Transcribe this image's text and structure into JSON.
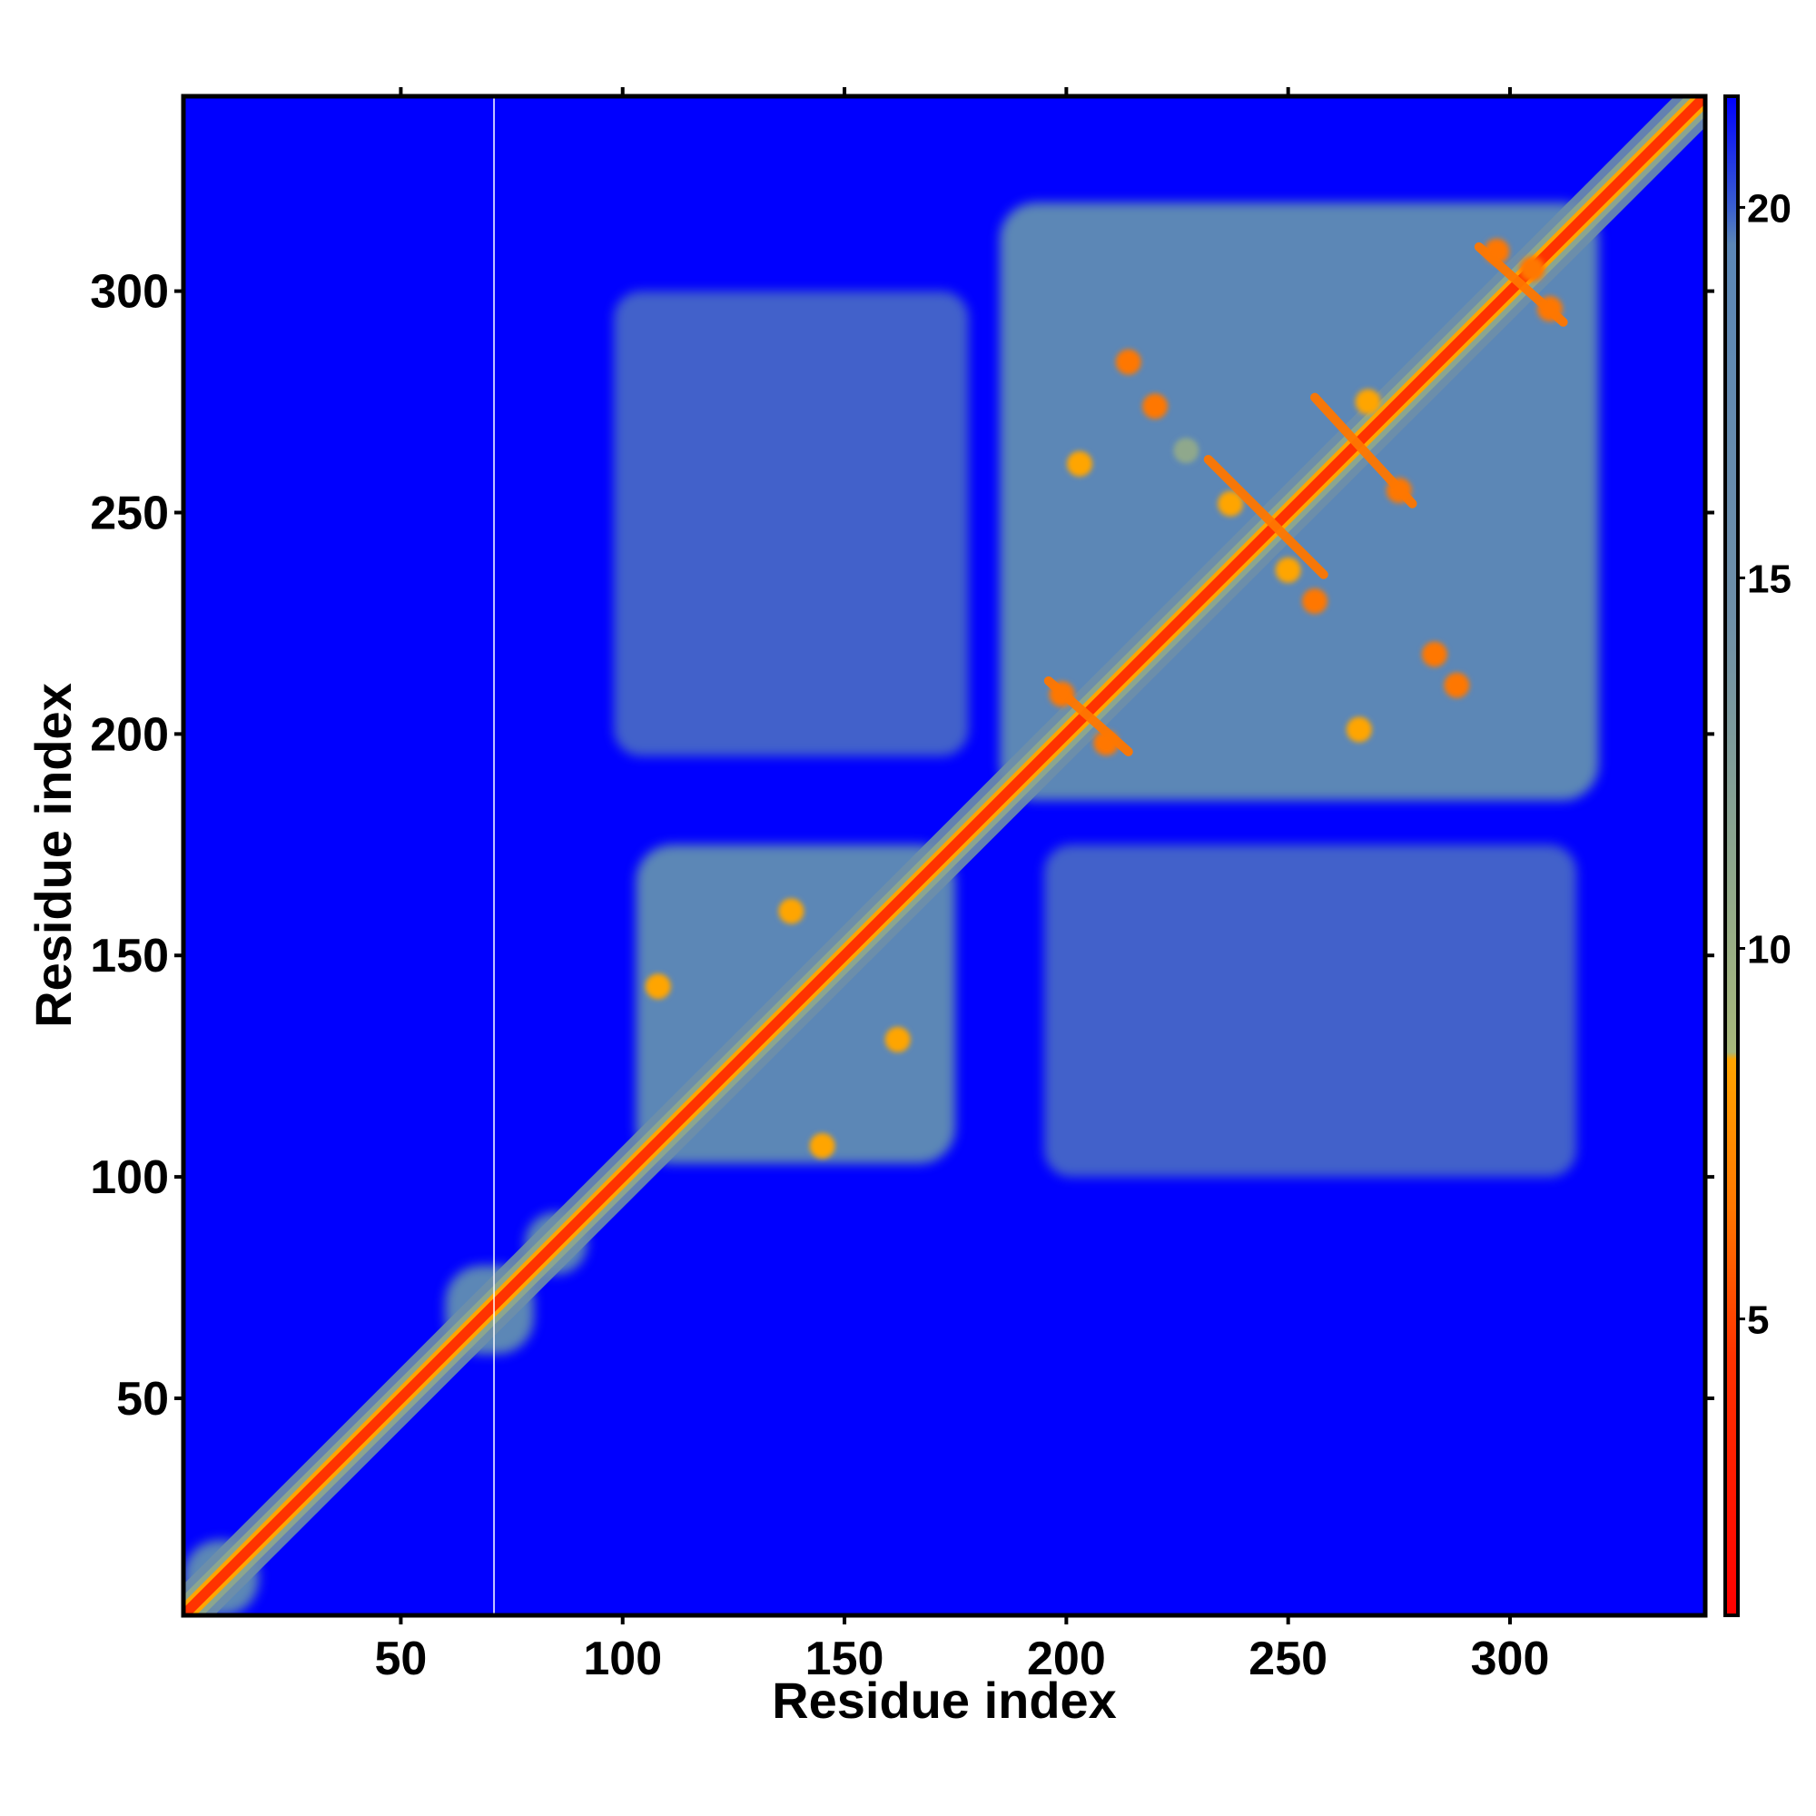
{
  "chart_data": {
    "type": "heatmap",
    "title": "",
    "xlabel": "Residue index",
    "ylabel": "Residue index",
    "xlim": [
      1,
      344
    ],
    "ylim": [
      1,
      344
    ],
    "x_ticks": [
      50,
      100,
      150,
      200,
      250,
      300
    ],
    "y_ticks": [
      50,
      100,
      150,
      200,
      250,
      300
    ],
    "colorbar": {
      "ticks": [
        5,
        10,
        15,
        20
      ],
      "range": [
        1,
        21.5
      ],
      "stops": [
        {
          "value": 1.0,
          "color": "#ff0000"
        },
        {
          "value": 4.5,
          "color": "#ff3300"
        },
        {
          "value": 6.5,
          "color": "#ff7700"
        },
        {
          "value": 8.5,
          "color": "#ffa500"
        },
        {
          "value": 8.6,
          "color": "#a8b87a"
        },
        {
          "value": 11.0,
          "color": "#8fa88c"
        },
        {
          "value": 14.5,
          "color": "#6e8fa8"
        },
        {
          "value": 19.5,
          "color": "#5b87b6"
        },
        {
          "value": 20.0,
          "color": "#3a5fd0"
        },
        {
          "value": 21.5,
          "color": "#0000ff"
        }
      ]
    },
    "background_color": "#0000ff",
    "missing_residue_line": 71,
    "diagonal_contacts": [
      {
        "from": 1,
        "to": 344,
        "value": 2
      }
    ],
    "domains": [
      {
        "name": "",
        "range": [
          1,
          18
        ],
        "mean_value": 16
      },
      {
        "name": "",
        "range": [
          60,
          80
        ],
        "mean_value": 15
      },
      {
        "name": "",
        "range": [
          78,
          92
        ],
        "mean_value": 15
      },
      {
        "name": "",
        "range": [
          103,
          175
        ],
        "mean_value": 17
      },
      {
        "name": "",
        "range": [
          185,
          320
        ],
        "mean_value": 17
      }
    ],
    "inter_domain_contacts": [
      {
        "rows": [
          195,
          300
        ],
        "cols": [
          98,
          178
        ],
        "value": 18.5
      },
      {
        "rows": [
          100,
          175
        ],
        "cols": [
          195,
          315
        ],
        "value": 18.5
      }
    ],
    "local_contacts": [
      {
        "x": 108,
        "y": 143,
        "value": 7
      },
      {
        "x": 145,
        "y": 107,
        "value": 7
      },
      {
        "x": 138,
        "y": 160,
        "value": 8
      },
      {
        "x": 162,
        "y": 131,
        "value": 8
      },
      {
        "x": 214,
        "y": 284,
        "value": 6
      },
      {
        "x": 220,
        "y": 274,
        "value": 6
      },
      {
        "x": 203,
        "y": 261,
        "value": 7
      },
      {
        "x": 227,
        "y": 264,
        "value": 9
      },
      {
        "x": 237,
        "y": 252,
        "value": 7
      },
      {
        "x": 250,
        "y": 237,
        "value": 7
      },
      {
        "x": 256,
        "y": 230,
        "value": 6
      },
      {
        "x": 275,
        "y": 255,
        "value": 6
      },
      {
        "x": 268,
        "y": 275,
        "value": 8
      },
      {
        "x": 283,
        "y": 218,
        "value": 6
      },
      {
        "x": 288,
        "y": 211,
        "value": 6
      },
      {
        "x": 266,
        "y": 201,
        "value": 7
      },
      {
        "x": 305,
        "y": 305,
        "value": 6
      },
      {
        "x": 297,
        "y": 309,
        "value": 6
      },
      {
        "x": 309,
        "y": 296,
        "value": 6
      },
      {
        "x": 199,
        "y": 209,
        "value": 6
      },
      {
        "x": 209,
        "y": 198,
        "value": 6
      }
    ],
    "antidiagonal_contacts": [
      {
        "x_range": [
          256,
          278
        ],
        "y_range": [
          276,
          252
        ],
        "value": 5
      },
      {
        "x_range": [
          232,
          258
        ],
        "y_range": [
          262,
          236
        ],
        "value": 5
      },
      {
        "x_range": [
          196,
          214
        ],
        "y_range": [
          212,
          196
        ],
        "value": 5
      },
      {
        "x_range": [
          293,
          312
        ],
        "y_range": [
          310,
          293
        ],
        "value": 5
      }
    ]
  }
}
